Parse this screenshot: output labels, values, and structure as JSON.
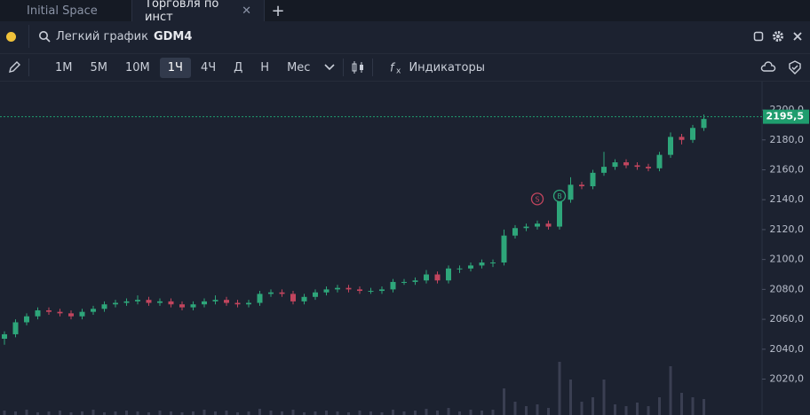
{
  "tabs": [
    {
      "label": "Initial Space",
      "active": false
    },
    {
      "label": "Торговля по инст",
      "active": true
    }
  ],
  "search": {
    "label": "Легкий график",
    "ticker": "GDM4"
  },
  "timeframes": {
    "items": [
      "1М",
      "5М",
      "10М",
      "1Ч",
      "4Ч",
      "Д",
      "Н",
      "Мес"
    ],
    "selected": 3
  },
  "indicators_label": "Индикаторы",
  "chart_data": {
    "type": "candlestick",
    "open": [
      2047,
      2050,
      2058,
      2062,
      2066,
      2065,
      2064,
      2062,
      2065,
      2067,
      2070,
      2071,
      2072,
      2073,
      2071,
      2072,
      2070,
      2068,
      2070,
      2072,
      2073,
      2071,
      2070,
      2071,
      2077,
      2078,
      2077,
      2072,
      2075,
      2078,
      2080,
      2081,
      2080,
      2079,
      2079,
      2080,
      2085,
      2085,
      2086,
      2090,
      2086,
      2094,
      2094,
      2096,
      2098,
      2098,
      2116,
      2121,
      2122,
      2124,
      2122,
      2140,
      2150,
      2149,
      2158,
      2162,
      2165,
      2163,
      2162,
      2161,
      2170,
      2182,
      2180,
      2188
    ],
    "high": [
      2052,
      2060,
      2064,
      2068,
      2068,
      2067,
      2066,
      2067,
      2069,
      2072,
      2073,
      2074,
      2076,
      2075,
      2074,
      2074,
      2072,
      2072,
      2074,
      2076,
      2075,
      2073,
      2073,
      2079,
      2080,
      2080,
      2079,
      2077,
      2080,
      2082,
      2083,
      2083,
      2082,
      2081,
      2082,
      2087,
      2087,
      2088,
      2093,
      2092,
      2096,
      2096,
      2098,
      2100,
      2100,
      2120,
      2123,
      2124,
      2126,
      2126,
      2142,
      2155,
      2152,
      2160,
      2172,
      2167,
      2167,
      2165,
      2164,
      2172,
      2185,
      2184,
      2190,
      2197
    ],
    "low": [
      2043,
      2048,
      2056,
      2060,
      2063,
      2062,
      2060,
      2060,
      2063,
      2065,
      2068,
      2069,
      2070,
      2069,
      2069,
      2068,
      2066,
      2066,
      2068,
      2070,
      2069,
      2068,
      2068,
      2069,
      2075,
      2075,
      2070,
      2070,
      2073,
      2076,
      2078,
      2078,
      2077,
      2077,
      2077,
      2078,
      2083,
      2083,
      2084,
      2084,
      2084,
      2091,
      2092,
      2094,
      2095,
      2096,
      2114,
      2119,
      2120,
      2120,
      2120,
      2138,
      2147,
      2147,
      2156,
      2160,
      2161,
      2160,
      2159,
      2159,
      2168,
      2177,
      2178,
      2186
    ],
    "close": [
      2050,
      2058,
      2062,
      2066,
      2065,
      2064,
      2062,
      2065,
      2067,
      2070,
      2071,
      2072,
      2073,
      2071,
      2072,
      2070,
      2068,
      2070,
      2072,
      2073,
      2071,
      2070,
      2071,
      2077,
      2078,
      2077,
      2072,
      2075,
      2078,
      2080,
      2081,
      2080,
      2079,
      2079,
      2080,
      2085,
      2085,
      2086,
      2090,
      2086,
      2094,
      2094,
      2096,
      2098,
      2098,
      2116,
      2121,
      2122,
      2124,
      2122,
      2140,
      2150,
      2149,
      2158,
      2162,
      2165,
      2163,
      2162,
      2161,
      2170,
      2182,
      2180,
      2188,
      2194
    ],
    "volume": [
      5,
      4,
      6,
      3,
      4,
      5,
      3,
      4,
      6,
      3,
      4,
      5,
      4,
      3,
      5,
      4,
      3,
      4,
      6,
      4,
      5,
      3,
      4,
      7,
      5,
      4,
      6,
      3,
      4,
      5,
      4,
      3,
      5,
      4,
      3,
      6,
      4,
      5,
      7,
      5,
      8,
      4,
      6,
      5,
      6,
      30,
      15,
      10,
      12,
      8,
      60,
      40,
      15,
      20,
      40,
      12,
      10,
      14,
      10,
      20,
      55,
      25,
      20,
      18
    ],
    "up_color": "#2ea67a",
    "down_color": "#c2455e",
    "volume_color": "#3a3f52",
    "ylim": [
      1996,
      2219
    ],
    "yticks": [
      {
        "value": 2020,
        "label": "2020,0"
      },
      {
        "value": 2040,
        "label": "2040,0"
      },
      {
        "value": 2060,
        "label": "2060,0"
      },
      {
        "value": 2080,
        "label": "2080,0"
      },
      {
        "value": 2100,
        "label": "2100,0"
      },
      {
        "value": 2120,
        "label": "2120,0"
      },
      {
        "value": 2140,
        "label": "2140,0"
      },
      {
        "value": 2160,
        "label": "2160,0"
      },
      {
        "value": 2180,
        "label": "2180,0"
      },
      {
        "value": 2200,
        "label": "2200,0"
      }
    ],
    "grid": false,
    "last_price": {
      "value": 2195.5,
      "label": "2195,5",
      "color": "#1f9d6e"
    },
    "markers": [
      {
        "label": "S",
        "value": 2140.5,
        "index": 48,
        "color": "#c2455e"
      },
      {
        "label": "B",
        "value": 2142.5,
        "index": 50,
        "color": "#2ea67a"
      }
    ]
  }
}
